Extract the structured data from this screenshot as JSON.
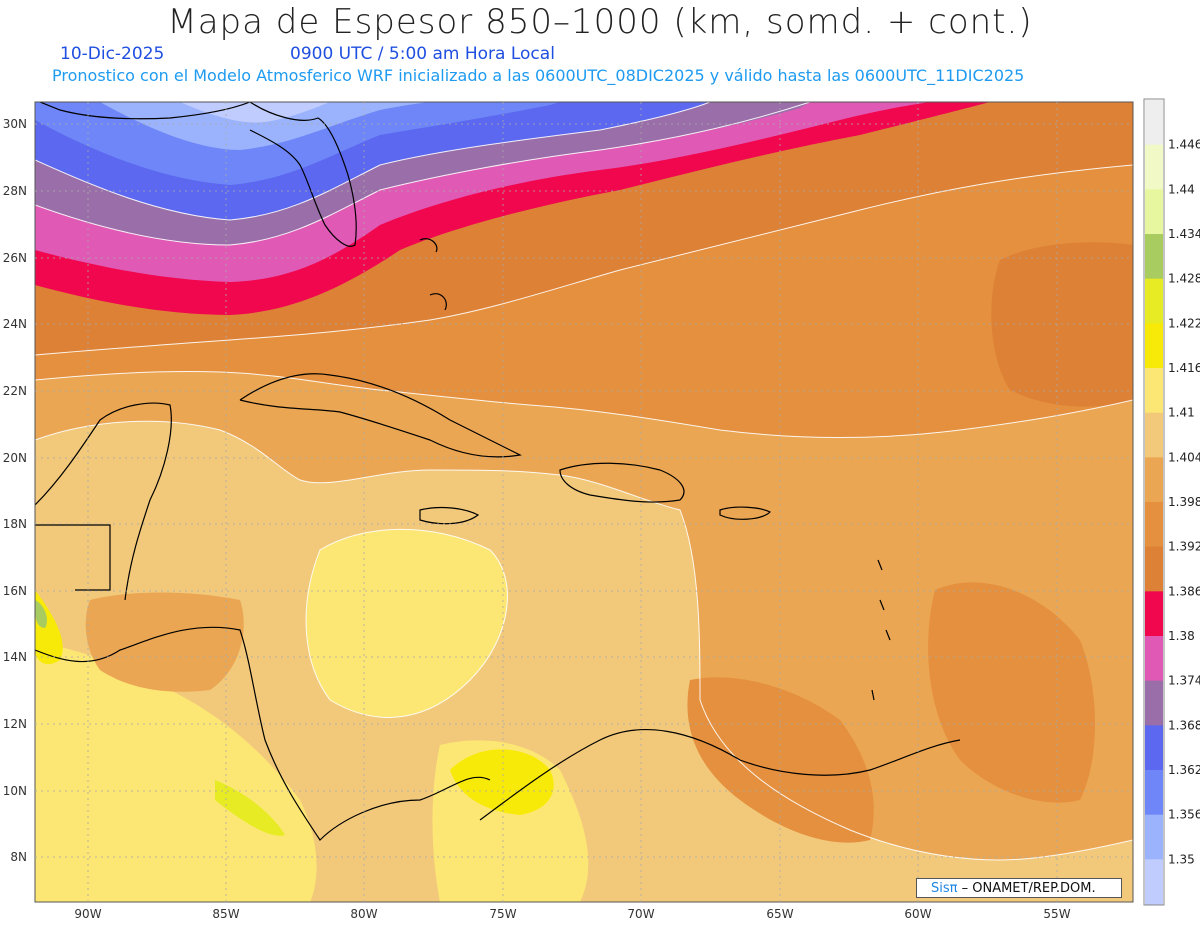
{
  "header": {
    "title": "Mapa de Espesor 850–1000 (km, somd. + cont.)",
    "date": "10-Dic-2025",
    "time": "0900 UTC / 5:00 am Hora Local",
    "subtitle": "Pronostico con el Modelo Atmosferico WRF inicializado a las 0600UTC_08DIC2025 y válido hasta las  0600UTC_11DIC2025"
  },
  "map": {
    "lat_labels": [
      "30N",
      "28N",
      "26N",
      "24N",
      "22N",
      "20N",
      "18N",
      "16N",
      "14N",
      "12N",
      "10N",
      "8N"
    ],
    "lon_labels": [
      "90W",
      "85W",
      "80W",
      "75W",
      "70W",
      "65W",
      "60W",
      "55W"
    ],
    "colors": {
      "c1350": "#c0ccfd",
      "c1356": "#9bb3fc",
      "c1362": "#6e86f7",
      "c1368": "#5b68ef",
      "c1374": "#9a6ea8",
      "c1380": "#e05ab5",
      "c1386": "#f0074e",
      "c1392": "#dd8137",
      "c1398": "#e4903e",
      "c1404": "#eba653",
      "c1410": "#f2c97b",
      "c1416": "#fde774",
      "c1422": "#f7ea08",
      "c1428": "#e6eb24",
      "c1434": "#a8cc60",
      "c1440": "#e7f7a0",
      "c1446": "#eeeeee"
    }
  },
  "colorbar": {
    "labels": [
      "1.446",
      "1.44",
      "1.434",
      "1.428",
      "1.422",
      "1.416",
      "1.41",
      "1.404",
      "1.398",
      "1.392",
      "1.386",
      "1.38",
      "1.374",
      "1.368",
      "1.362",
      "1.356",
      "1.35"
    ],
    "colors": [
      "#eeeeee",
      "#f1f9c7",
      "#e7f7a0",
      "#a8cc60",
      "#e6eb24",
      "#f7ea08",
      "#fde774",
      "#f2c97b",
      "#eba653",
      "#e4903e",
      "#dd8137",
      "#f0074e",
      "#e05ab5",
      "#9a6ea8",
      "#5b68ef",
      "#6e86f7",
      "#9bb3fc",
      "#c0ccfd"
    ]
  },
  "credit": {
    "brand": "Sisπ",
    "org": "– ONAMET/REP.DOM."
  }
}
